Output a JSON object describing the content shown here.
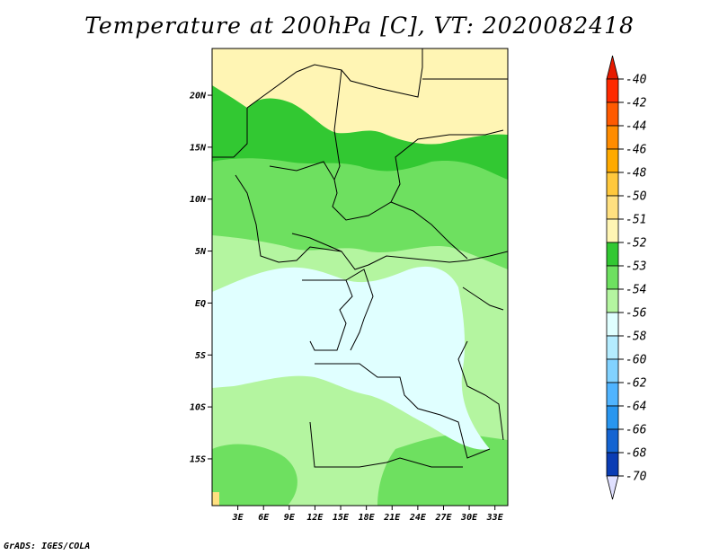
{
  "title": "Temperature at 200hPa [C], VT: 2020082418",
  "credit": "GrADS: IGES/COLA",
  "map": {
    "lat_labels": [
      "20N",
      "15N",
      "10N",
      "5N",
      "EQ",
      "5S",
      "10S",
      "15S"
    ],
    "lat_values": [
      20,
      15,
      10,
      5,
      0,
      -5,
      -10,
      -15
    ],
    "lon_labels": [
      "3E",
      "6E",
      "9E",
      "12E",
      "15E",
      "18E",
      "21E",
      "24E",
      "27E",
      "30E",
      "33E"
    ],
    "lon_values": [
      3,
      6,
      9,
      12,
      15,
      18,
      21,
      24,
      27,
      30,
      33
    ],
    "lat_range": [
      -19.5,
      24.5
    ],
    "lon_range": [
      0,
      34.5
    ]
  },
  "colorbar": {
    "labels": [
      "-40",
      "-42",
      "-44",
      "-46",
      "-48",
      "-50",
      "-51",
      "-52",
      "-53",
      "-54",
      "-56",
      "-58",
      "-60",
      "-62",
      "-64",
      "-66",
      "-68",
      "-70"
    ],
    "colors": [
      "#ff2a00",
      "#ff5a00",
      "#ff8c00",
      "#ffaa00",
      "#ffc83c",
      "#ffe080",
      "#fff5b4",
      "#32c832",
      "#6ee060",
      "#b4f5a0",
      "#e0ffff",
      "#b4ecff",
      "#82d2ff",
      "#50b4ff",
      "#2896f0",
      "#1464d2",
      "#0a3cb4",
      "#000a80"
    ],
    "top_color": "#e61a00",
    "bottom_color": "#e0e0ff"
  }
}
